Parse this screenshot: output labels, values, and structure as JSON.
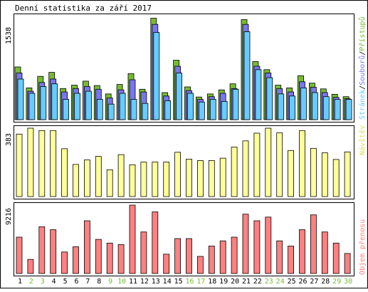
{
  "title": "Denní statistika za září 2017",
  "colors": {
    "background": "#ffffff",
    "border": "#000000",
    "hits": "#77bb33",
    "files": "#7777ee",
    "pages": "#66ccff",
    "visits": "#ffff99",
    "kbytes": "#ff8080",
    "weekend": "#77bb33",
    "weekday": "#000000"
  },
  "chart_data": [
    {
      "type": "bar",
      "panel": "top",
      "ylabel_max": "1538",
      "ymax": 1538,
      "legend": [
        {
          "text": "Stránek",
          "color": "#66ccff"
        },
        {
          "text": "Souborů",
          "color": "#7777ee"
        },
        {
          "text": "Přístupů",
          "color": "#77bb33"
        }
      ],
      "separator": "/",
      "categories": [
        "1",
        "2",
        "3",
        "4",
        "5",
        "6",
        "7",
        "8",
        "9",
        "10",
        "11",
        "12",
        "13",
        "14",
        "15",
        "16",
        "17",
        "18",
        "19",
        "20",
        "21",
        "22",
        "23",
        "24",
        "25",
        "26",
        "27",
        "28",
        "29",
        "30"
      ],
      "series": [
        {
          "name": "Přístupů",
          "color": "#77bb33",
          "values": [
            780,
            470,
            640,
            700,
            460,
            510,
            570,
            505,
            380,
            520,
            680,
            450,
            1500,
            400,
            880,
            485,
            335,
            380,
            440,
            530,
            1480,
            860,
            740,
            510,
            470,
            650,
            540,
            455,
            375,
            340
          ]
        },
        {
          "name": "Souborů",
          "color": "#7777ee",
          "values": [
            690,
            420,
            550,
            600,
            410,
            460,
            490,
            450,
            320,
            440,
            590,
            410,
            1410,
            350,
            790,
            430,
            300,
            340,
            390,
            460,
            1410,
            790,
            690,
            460,
            410,
            560,
            480,
            400,
            330,
            310
          ]
        },
        {
          "name": "Stránek",
          "color": "#66ccff",
          "values": [
            600,
            390,
            490,
            530,
            300,
            390,
            420,
            300,
            230,
            390,
            300,
            240,
            1290,
            280,
            690,
            390,
            260,
            300,
            270,
            450,
            1300,
            740,
            620,
            380,
            350,
            470,
            400,
            340,
            300,
            300
          ]
        }
      ]
    },
    {
      "type": "bar",
      "panel": "middle",
      "ylabel_max": "383",
      "ymax": 383,
      "legend": [
        {
          "text": "Návštěv",
          "color": "#ffff99"
        }
      ],
      "categories": [
        "1",
        "2",
        "3",
        "4",
        "5",
        "6",
        "7",
        "8",
        "9",
        "10",
        "11",
        "12",
        "13",
        "14",
        "15",
        "16",
        "17",
        "18",
        "19",
        "20",
        "21",
        "22",
        "23",
        "24",
        "25",
        "26",
        "27",
        "28",
        "29",
        "30"
      ],
      "series": [
        {
          "name": "Návštěv",
          "color": "#ffff99",
          "values": [
            350,
            383,
            370,
            370,
            268,
            180,
            205,
            225,
            150,
            235,
            178,
            193,
            193,
            193,
            248,
            210,
            202,
            202,
            215,
            277,
            312,
            355,
            383,
            357,
            258,
            370,
            270,
            245,
            208,
            250
          ]
        }
      ]
    },
    {
      "type": "bar",
      "panel": "bottom",
      "ylabel_max": "9216",
      "ymax": 9216,
      "legend": [
        {
          "text": "Objem přenosu",
          "color": "#ff8080"
        }
      ],
      "categories": [
        "1",
        "2",
        "3",
        "4",
        "5",
        "6",
        "7",
        "8",
        "9",
        "10",
        "11",
        "12",
        "13",
        "14",
        "15",
        "16",
        "17",
        "18",
        "19",
        "20",
        "21",
        "22",
        "23",
        "24",
        "25",
        "26",
        "27",
        "28",
        "29",
        "30"
      ],
      "series": [
        {
          "name": "Objem přenosu",
          "color": "#ff8080",
          "values": [
            4900,
            1900,
            6300,
            5900,
            2900,
            3600,
            7100,
            4600,
            4100,
            3900,
            9216,
            5600,
            8300,
            2600,
            4700,
            4700,
            2300,
            3700,
            4400,
            4900,
            8000,
            7100,
            7600,
            4400,
            3700,
            5900,
            7900,
            5600,
            4100,
            2700
          ]
        }
      ]
    }
  ],
  "x_axis": {
    "labels": [
      "1",
      "2",
      "3",
      "4",
      "5",
      "6",
      "7",
      "8",
      "9",
      "10",
      "11",
      "12",
      "13",
      "14",
      "15",
      "16",
      "17",
      "18",
      "19",
      "20",
      "21",
      "22",
      "23",
      "24",
      "25",
      "26",
      "27",
      "28",
      "29",
      "30"
    ],
    "weekend": [
      false,
      true,
      true,
      false,
      false,
      false,
      false,
      false,
      true,
      true,
      false,
      false,
      false,
      false,
      false,
      true,
      true,
      false,
      false,
      false,
      false,
      false,
      true,
      true,
      false,
      false,
      false,
      false,
      true,
      true
    ]
  }
}
